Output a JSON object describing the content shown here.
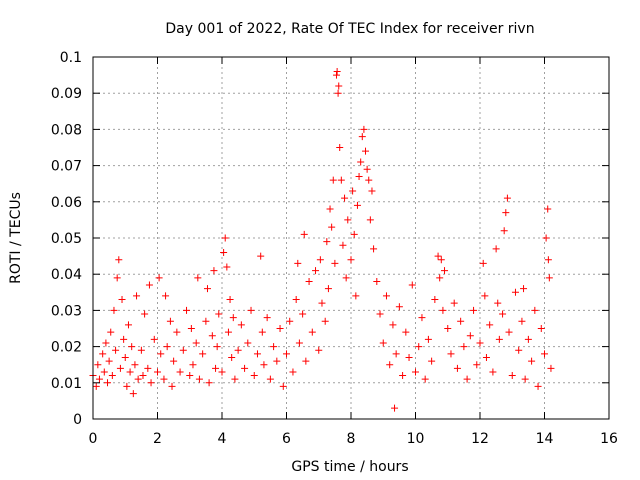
{
  "chart_data": {
    "type": "scatter",
    "title": "Day 001 of 2022, Rate Of TEC Index for receiver rivn",
    "xlabel": "GPS time / hours",
    "ylabel": "ROTI / TECUs",
    "xlim": [
      0,
      16
    ],
    "ylim": [
      0,
      0.1
    ],
    "xticks": [
      0,
      2,
      4,
      6,
      8,
      10,
      12,
      14,
      16
    ],
    "yticks": [
      0,
      0.01,
      0.02,
      0.03,
      0.04,
      0.05,
      0.06,
      0.07,
      0.08,
      0.09,
      0.1
    ],
    "xtick_labels": [
      "0",
      "2",
      "4",
      "6",
      "8",
      "10",
      "12",
      "14",
      "16"
    ],
    "ytick_labels": [
      "0",
      "0.01",
      "0.02",
      "0.03",
      "0.04",
      "0.05",
      "0.06",
      "0.07",
      "0.08",
      "0.09",
      "0.1"
    ],
    "grid": true,
    "marker": "+",
    "marker_color": "#ff0000",
    "series": [
      {
        "name": "ROTI",
        "points": [
          [
            0.0,
            0.012
          ],
          [
            0.1,
            0.009
          ],
          [
            0.15,
            0.015
          ],
          [
            0.2,
            0.011
          ],
          [
            0.3,
            0.018
          ],
          [
            0.35,
            0.013
          ],
          [
            0.4,
            0.021
          ],
          [
            0.45,
            0.01
          ],
          [
            0.5,
            0.016
          ],
          [
            0.55,
            0.024
          ],
          [
            0.6,
            0.012
          ],
          [
            0.65,
            0.03
          ],
          [
            0.7,
            0.019
          ],
          [
            0.75,
            0.039
          ],
          [
            0.8,
            0.044
          ],
          [
            0.85,
            0.014
          ],
          [
            0.9,
            0.033
          ],
          [
            0.95,
            0.022
          ],
          [
            1.0,
            0.017
          ],
          [
            1.05,
            0.009
          ],
          [
            1.1,
            0.026
          ],
          [
            1.15,
            0.013
          ],
          [
            1.2,
            0.02
          ],
          [
            1.25,
            0.007
          ],
          [
            1.3,
            0.015
          ],
          [
            1.35,
            0.034
          ],
          [
            1.4,
            0.011
          ],
          [
            1.5,
            0.019
          ],
          [
            1.55,
            0.012
          ],
          [
            1.6,
            0.029
          ],
          [
            1.7,
            0.014
          ],
          [
            1.75,
            0.037
          ],
          [
            1.8,
            0.01
          ],
          [
            1.9,
            0.022
          ],
          [
            2.0,
            0.013
          ],
          [
            2.05,
            0.039
          ],
          [
            2.1,
            0.018
          ],
          [
            2.2,
            0.011
          ],
          [
            2.25,
            0.034
          ],
          [
            2.3,
            0.02
          ],
          [
            2.4,
            0.027
          ],
          [
            2.45,
            0.009
          ],
          [
            2.5,
            0.016
          ],
          [
            2.6,
            0.024
          ],
          [
            2.7,
            0.013
          ],
          [
            2.8,
            0.019
          ],
          [
            2.9,
            0.03
          ],
          [
            3.0,
            0.012
          ],
          [
            3.05,
            0.025
          ],
          [
            3.1,
            0.015
          ],
          [
            3.2,
            0.021
          ],
          [
            3.25,
            0.039
          ],
          [
            3.3,
            0.011
          ],
          [
            3.4,
            0.018
          ],
          [
            3.5,
            0.027
          ],
          [
            3.55,
            0.036
          ],
          [
            3.6,
            0.01
          ],
          [
            3.7,
            0.023
          ],
          [
            3.75,
            0.041
          ],
          [
            3.8,
            0.014
          ],
          [
            3.85,
            0.02
          ],
          [
            3.9,
            0.029
          ],
          [
            4.0,
            0.013
          ],
          [
            4.05,
            0.046
          ],
          [
            4.1,
            0.05
          ],
          [
            4.15,
            0.042
          ],
          [
            4.2,
            0.024
          ],
          [
            4.25,
            0.033
          ],
          [
            4.3,
            0.017
          ],
          [
            4.35,
            0.028
          ],
          [
            4.4,
            0.011
          ],
          [
            4.5,
            0.019
          ],
          [
            4.6,
            0.026
          ],
          [
            4.7,
            0.014
          ],
          [
            4.8,
            0.021
          ],
          [
            4.9,
            0.03
          ],
          [
            5.0,
            0.012
          ],
          [
            5.1,
            0.018
          ],
          [
            5.2,
            0.045
          ],
          [
            5.25,
            0.024
          ],
          [
            5.3,
            0.015
          ],
          [
            5.4,
            0.028
          ],
          [
            5.5,
            0.011
          ],
          [
            5.6,
            0.02
          ],
          [
            5.7,
            0.016
          ],
          [
            5.8,
            0.025
          ],
          [
            5.9,
            0.009
          ],
          [
            6.0,
            0.018
          ],
          [
            6.1,
            0.027
          ],
          [
            6.2,
            0.013
          ],
          [
            6.3,
            0.033
          ],
          [
            6.35,
            0.043
          ],
          [
            6.4,
            0.021
          ],
          [
            6.5,
            0.029
          ],
          [
            6.55,
            0.051
          ],
          [
            6.6,
            0.016
          ],
          [
            6.7,
            0.038
          ],
          [
            6.8,
            0.024
          ],
          [
            6.9,
            0.041
          ],
          [
            7.0,
            0.019
          ],
          [
            7.05,
            0.044
          ],
          [
            7.1,
            0.032
          ],
          [
            7.2,
            0.027
          ],
          [
            7.25,
            0.049
          ],
          [
            7.3,
            0.036
          ],
          [
            7.35,
            0.058
          ],
          [
            7.4,
            0.053
          ],
          [
            7.45,
            0.066
          ],
          [
            7.5,
            0.043
          ],
          [
            7.55,
            0.095
          ],
          [
            7.57,
            0.096
          ],
          [
            7.6,
            0.09
          ],
          [
            7.62,
            0.092
          ],
          [
            7.65,
            0.075
          ],
          [
            7.7,
            0.066
          ],
          [
            7.75,
            0.048
          ],
          [
            7.8,
            0.061
          ],
          [
            7.85,
            0.039
          ],
          [
            7.9,
            0.055
          ],
          [
            8.0,
            0.044
          ],
          [
            8.05,
            0.063
          ],
          [
            8.1,
            0.051
          ],
          [
            8.15,
            0.034
          ],
          [
            8.2,
            0.059
          ],
          [
            8.25,
            0.067
          ],
          [
            8.3,
            0.071
          ],
          [
            8.35,
            0.078
          ],
          [
            8.4,
            0.08
          ],
          [
            8.45,
            0.074
          ],
          [
            8.5,
            0.069
          ],
          [
            8.55,
            0.066
          ],
          [
            8.6,
            0.055
          ],
          [
            8.65,
            0.063
          ],
          [
            8.7,
            0.047
          ],
          [
            8.8,
            0.038
          ],
          [
            8.9,
            0.029
          ],
          [
            9.0,
            0.021
          ],
          [
            9.1,
            0.034
          ],
          [
            9.2,
            0.015
          ],
          [
            9.3,
            0.026
          ],
          [
            9.35,
            0.003
          ],
          [
            9.4,
            0.018
          ],
          [
            9.5,
            0.031
          ],
          [
            9.6,
            0.012
          ],
          [
            9.7,
            0.024
          ],
          [
            9.8,
            0.017
          ],
          [
            9.9,
            0.037
          ],
          [
            10.0,
            0.013
          ],
          [
            10.1,
            0.02
          ],
          [
            10.2,
            0.028
          ],
          [
            10.3,
            0.011
          ],
          [
            10.4,
            0.022
          ],
          [
            10.5,
            0.016
          ],
          [
            10.6,
            0.033
          ],
          [
            10.7,
            0.045
          ],
          [
            10.75,
            0.039
          ],
          [
            10.8,
            0.044
          ],
          [
            10.85,
            0.03
          ],
          [
            10.9,
            0.041
          ],
          [
            11.0,
            0.025
          ],
          [
            11.1,
            0.018
          ],
          [
            11.2,
            0.032
          ],
          [
            11.3,
            0.014
          ],
          [
            11.4,
            0.027
          ],
          [
            11.5,
            0.02
          ],
          [
            11.6,
            0.011
          ],
          [
            11.7,
            0.023
          ],
          [
            11.8,
            0.03
          ],
          [
            11.9,
            0.015
          ],
          [
            12.0,
            0.021
          ],
          [
            12.1,
            0.043
          ],
          [
            12.15,
            0.034
          ],
          [
            12.2,
            0.017
          ],
          [
            12.3,
            0.026
          ],
          [
            12.4,
            0.013
          ],
          [
            12.5,
            0.047
          ],
          [
            12.55,
            0.032
          ],
          [
            12.6,
            0.022
          ],
          [
            12.7,
            0.029
          ],
          [
            12.75,
            0.052
          ],
          [
            12.8,
            0.057
          ],
          [
            12.85,
            0.061
          ],
          [
            12.9,
            0.024
          ],
          [
            13.0,
            0.012
          ],
          [
            13.1,
            0.035
          ],
          [
            13.2,
            0.019
          ],
          [
            13.3,
            0.027
          ],
          [
            13.35,
            0.036
          ],
          [
            13.4,
            0.011
          ],
          [
            13.5,
            0.022
          ],
          [
            13.6,
            0.016
          ],
          [
            13.7,
            0.03
          ],
          [
            13.8,
            0.009
          ],
          [
            13.9,
            0.025
          ],
          [
            14.0,
            0.018
          ],
          [
            14.05,
            0.05
          ],
          [
            14.1,
            0.058
          ],
          [
            14.12,
            0.044
          ],
          [
            14.15,
            0.039
          ],
          [
            14.2,
            0.014
          ]
        ]
      }
    ]
  }
}
